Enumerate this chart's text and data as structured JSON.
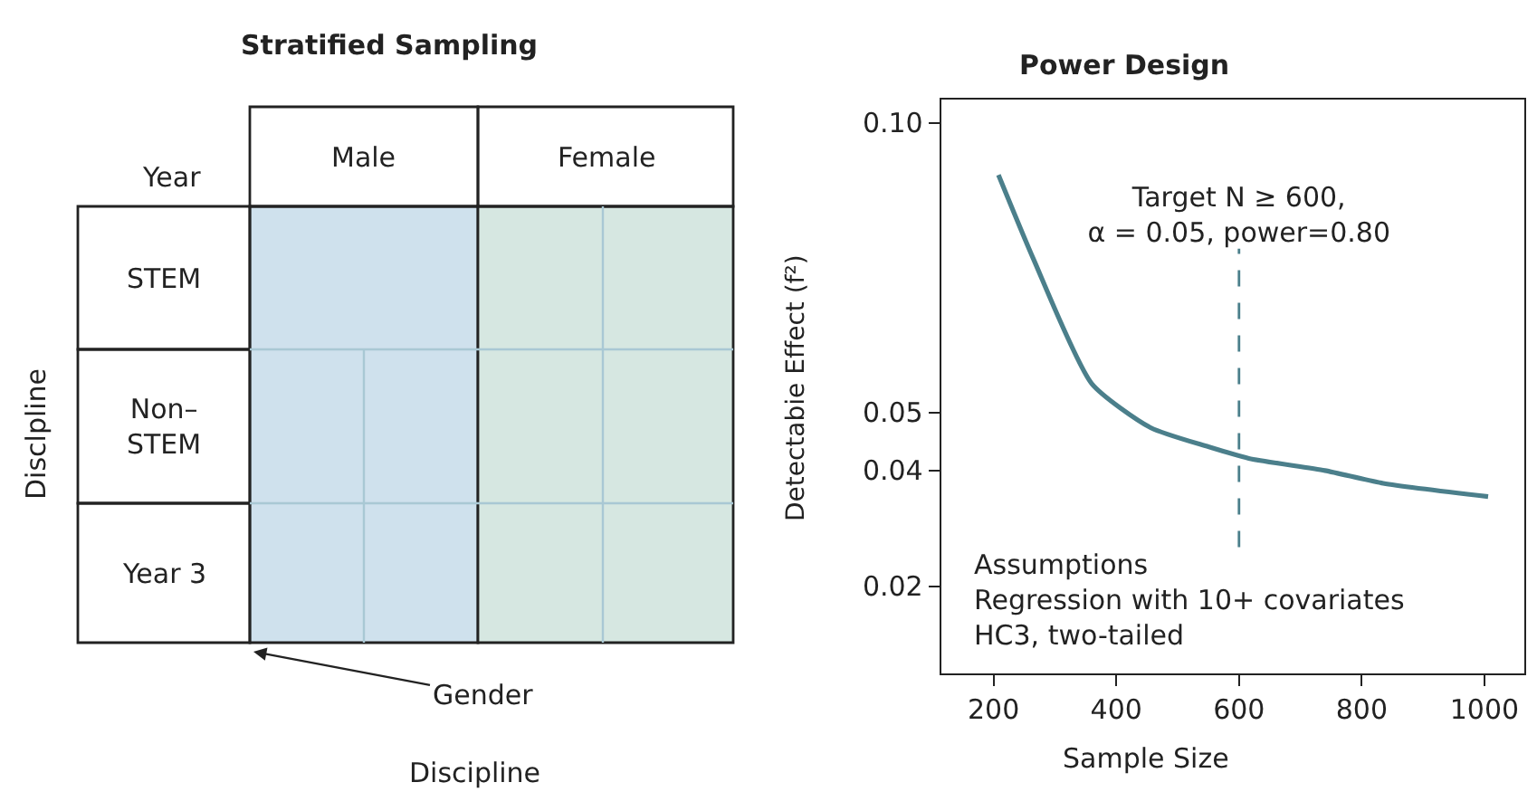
{
  "chart_data": [
    {
      "type": "other",
      "title": "Stratified Sampling",
      "xlabel": "Discipline",
      "ylabel": "Disclpline",
      "categories": [
        "Male",
        "Female"
      ],
      "y_categories": [
        "STEM",
        "Non–\nSTEM",
        "Year 3"
      ],
      "colors": [
        "#cfe1ed",
        "#d6e7e1"
      ],
      "annotations": [
        "Year",
        "Gender"
      ]
    },
    {
      "type": "line",
      "title": "Power Design",
      "xlabel": "Sample Size",
      "ylabel": "Detectabie Effect (f²)",
      "series": [
        {
          "color": "#4b7f8b",
          "x": [
            208,
            265,
            360,
            456,
            550,
            616,
            740,
            835,
            1006
          ],
          "values": [
            0.091,
            0.0765,
            0.055,
            0.0474,
            0.0441,
            0.0421,
            0.04,
            0.0378,
            0.0355
          ]
        }
      ],
      "xlim": [
        115,
        1065
      ],
      "xticks": [
        200,
        400,
        600,
        800,
        1000
      ],
      "ylim": [
        0.005,
        0.104
      ],
      "yticks": [
        {
          "value": 0.1,
          "label": "0.10"
        },
        0.05,
        0.04,
        0.02
      ],
      "grid": false,
      "marker": "none",
      "line_style": "solid",
      "ref_lines": [
        {
          "axis": "x",
          "value": 600,
          "label": "Target N ≥ 600,\nα = 0.05, power=0.80",
          "color": "#4b7f8b",
          "line_style": "dashed"
        }
      ],
      "annotations": [
        "Assumptions\nRegression with 10+ covariates\nHC3, two-tailed"
      ]
    }
  ]
}
